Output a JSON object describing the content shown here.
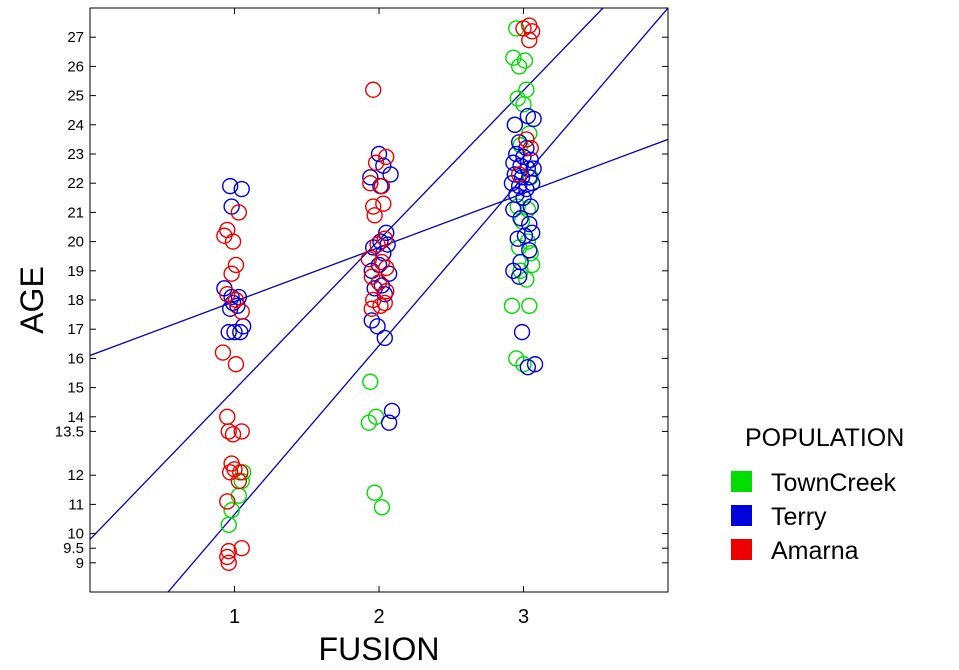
{
  "chart_data": {
    "type": "scatter",
    "xlabel": "FUSION",
    "ylabel": "AGE",
    "xlim": [
      0,
      4
    ],
    "ylim": [
      8,
      28
    ],
    "x_ticks": [
      1,
      2,
      3
    ],
    "y_ticks": [
      9,
      9.5,
      10,
      11,
      12,
      13.5,
      14,
      15,
      16,
      17,
      18,
      19,
      20,
      21,
      22,
      23,
      24,
      25,
      26,
      27
    ],
    "y_tick_labels": [
      "9",
      "9.5",
      "10",
      "11",
      "12",
      "13.5",
      "14",
      "15",
      "16",
      "17",
      "18",
      "19",
      "20",
      "21",
      "22",
      "23",
      "24",
      "25",
      "26",
      "27"
    ],
    "grid": false,
    "legend": {
      "title": "POPULATION",
      "placement": "right"
    },
    "series": [
      {
        "name": "TownCreek",
        "color": "#00dd00",
        "marker": "open-circle",
        "points": [
          [
            0.96,
            10.3
          ],
          [
            0.98,
            10.8
          ],
          [
            1.03,
            11.3
          ],
          [
            1.05,
            11.8
          ],
          [
            1.06,
            12.1
          ],
          [
            1.94,
            15.2
          ],
          [
            1.93,
            13.8
          ],
          [
            1.98,
            14.0
          ],
          [
            1.97,
            11.4
          ],
          [
            2.02,
            10.9
          ],
          [
            2.95,
            27.3
          ],
          [
            2.93,
            26.3
          ],
          [
            3.01,
            26.2
          ],
          [
            2.97,
            26.0
          ],
          [
            3.02,
            25.2
          ],
          [
            2.96,
            24.9
          ],
          [
            3.0,
            24.7
          ],
          [
            2.94,
            24.0
          ],
          [
            3.04,
            23.7
          ],
          [
            2.98,
            23.3
          ],
          [
            3.05,
            22.2
          ],
          [
            2.96,
            21.2
          ],
          [
            3.03,
            21.1
          ],
          [
            2.99,
            20.7
          ],
          [
            3.03,
            20.0
          ],
          [
            2.97,
            19.8
          ],
          [
            3.05,
            19.6
          ],
          [
            3.06,
            19.2
          ],
          [
            2.98,
            19.0
          ],
          [
            3.02,
            18.7
          ],
          [
            2.92,
            17.8
          ],
          [
            3.04,
            17.8
          ],
          [
            2.95,
            16.0
          ],
          [
            3.0,
            15.8
          ]
        ]
      },
      {
        "name": "Terry",
        "color": "#0000dd",
        "marker": "open-circle",
        "points": [
          [
            0.97,
            21.9
          ],
          [
            1.05,
            21.8
          ],
          [
            0.98,
            21.2
          ],
          [
            0.93,
            18.4
          ],
          [
            0.98,
            18.1
          ],
          [
            1.03,
            18.1
          ],
          [
            0.99,
            17.9
          ],
          [
            1.02,
            17.8
          ],
          [
            0.97,
            17.7
          ],
          [
            1.06,
            17.1
          ],
          [
            0.96,
            16.9
          ],
          [
            1.0,
            16.9
          ],
          [
            1.04,
            16.9
          ],
          [
            1.94,
            22.2
          ],
          [
            2.0,
            23.0
          ],
          [
            2.03,
            22.6
          ],
          [
            2.08,
            22.3
          ],
          [
            2.01,
            21.9
          ],
          [
            2.05,
            20.3
          ],
          [
            1.96,
            19.8
          ],
          [
            2.01,
            20.0
          ],
          [
            2.06,
            19.9
          ],
          [
            2.03,
            19.6
          ],
          [
            2.0,
            19.2
          ],
          [
            1.95,
            19.0
          ],
          [
            2.07,
            18.9
          ],
          [
            1.97,
            18.4
          ],
          [
            2.02,
            18.5
          ],
          [
            2.04,
            18.2
          ],
          [
            1.95,
            17.3
          ],
          [
            1.99,
            17.1
          ],
          [
            2.04,
            16.7
          ],
          [
            2.09,
            14.2
          ],
          [
            2.07,
            13.8
          ],
          [
            2.94,
            24.0
          ],
          [
            3.03,
            24.3
          ],
          [
            3.07,
            24.2
          ],
          [
            2.97,
            23.4
          ],
          [
            3.02,
            23.2
          ],
          [
            2.95,
            23.0
          ],
          [
            3.0,
            22.9
          ],
          [
            3.05,
            22.8
          ],
          [
            2.93,
            22.7
          ],
          [
            2.98,
            22.6
          ],
          [
            3.03,
            22.5
          ],
          [
            3.07,
            22.5
          ],
          [
            2.94,
            22.3
          ],
          [
            2.99,
            22.2
          ],
          [
            3.04,
            22.2
          ],
          [
            2.92,
            22.0
          ],
          [
            2.97,
            21.9
          ],
          [
            3.02,
            21.8
          ],
          [
            3.06,
            22.0
          ],
          [
            2.95,
            21.6
          ],
          [
            3.0,
            21.5
          ],
          [
            2.93,
            21.1
          ],
          [
            3.05,
            21.2
          ],
          [
            2.98,
            20.8
          ],
          [
            3.04,
            20.6
          ],
          [
            3.01,
            20.2
          ],
          [
            3.06,
            20.3
          ],
          [
            2.96,
            20.1
          ],
          [
            3.04,
            19.7
          ],
          [
            2.98,
            19.3
          ],
          [
            2.93,
            19.0
          ],
          [
            2.97,
            18.8
          ],
          [
            2.99,
            16.9
          ],
          [
            3.03,
            15.7
          ],
          [
            3.08,
            15.8
          ]
        ]
      },
      {
        "name": "Amarna",
        "color": "#ee0000",
        "marker": "open-circle",
        "points": [
          [
            0.95,
            20.4
          ],
          [
            0.93,
            20.2
          ],
          [
            0.99,
            20.0
          ],
          [
            1.03,
            21.0
          ],
          [
            1.01,
            19.2
          ],
          [
            0.98,
            18.9
          ],
          [
            0.95,
            18.2
          ],
          [
            1.01,
            18.0
          ],
          [
            1.05,
            17.6
          ],
          [
            0.92,
            16.2
          ],
          [
            1.01,
            15.8
          ],
          [
            0.95,
            14.0
          ],
          [
            0.96,
            13.5
          ],
          [
            0.99,
            13.4
          ],
          [
            1.05,
            13.5
          ],
          [
            0.98,
            12.4
          ],
          [
            1.0,
            12.2
          ],
          [
            1.04,
            12.1
          ],
          [
            0.97,
            12.1
          ],
          [
            1.03,
            11.8
          ],
          [
            0.95,
            11.1
          ],
          [
            0.96,
            9.4
          ],
          [
            0.95,
            9.2
          ],
          [
            0.96,
            9.0
          ],
          [
            1.05,
            9.5
          ],
          [
            1.96,
            25.2
          ],
          [
            2.05,
            22.9
          ],
          [
            1.98,
            22.7
          ],
          [
            1.94,
            22.0
          ],
          [
            2.02,
            21.9
          ],
          [
            1.96,
            21.2
          ],
          [
            2.03,
            21.3
          ],
          [
            1.97,
            20.9
          ],
          [
            2.04,
            20.1
          ],
          [
            1.99,
            19.9
          ],
          [
            1.93,
            19.4
          ],
          [
            2.02,
            19.3
          ],
          [
            2.05,
            19.1
          ],
          [
            1.95,
            18.8
          ],
          [
            2.0,
            18.6
          ],
          [
            2.05,
            18.3
          ],
          [
            1.96,
            18.0
          ],
          [
            2.01,
            17.8
          ],
          [
            2.04,
            17.9
          ],
          [
            1.95,
            17.7
          ],
          [
            3.04,
            27.4
          ],
          [
            3.0,
            27.3
          ],
          [
            3.06,
            27.2
          ],
          [
            3.04,
            26.9
          ],
          [
            3.02,
            23.5
          ],
          [
            3.05,
            23.2
          ],
          [
            2.97,
            22.3
          ]
        ]
      }
    ],
    "lines": [
      {
        "name": "",
        "color": "#0000bb",
        "points": [
          [
            0,
            16.1
          ],
          [
            4,
            23.5
          ]
        ]
      },
      {
        "name": "",
        "color": "#0000bb",
        "points": [
          [
            0,
            9.8
          ],
          [
            3.55,
            28
          ]
        ]
      },
      {
        "name": "",
        "color": "#0000bb",
        "points": [
          [
            0.54,
            8
          ],
          [
            4,
            28
          ]
        ]
      }
    ]
  }
}
